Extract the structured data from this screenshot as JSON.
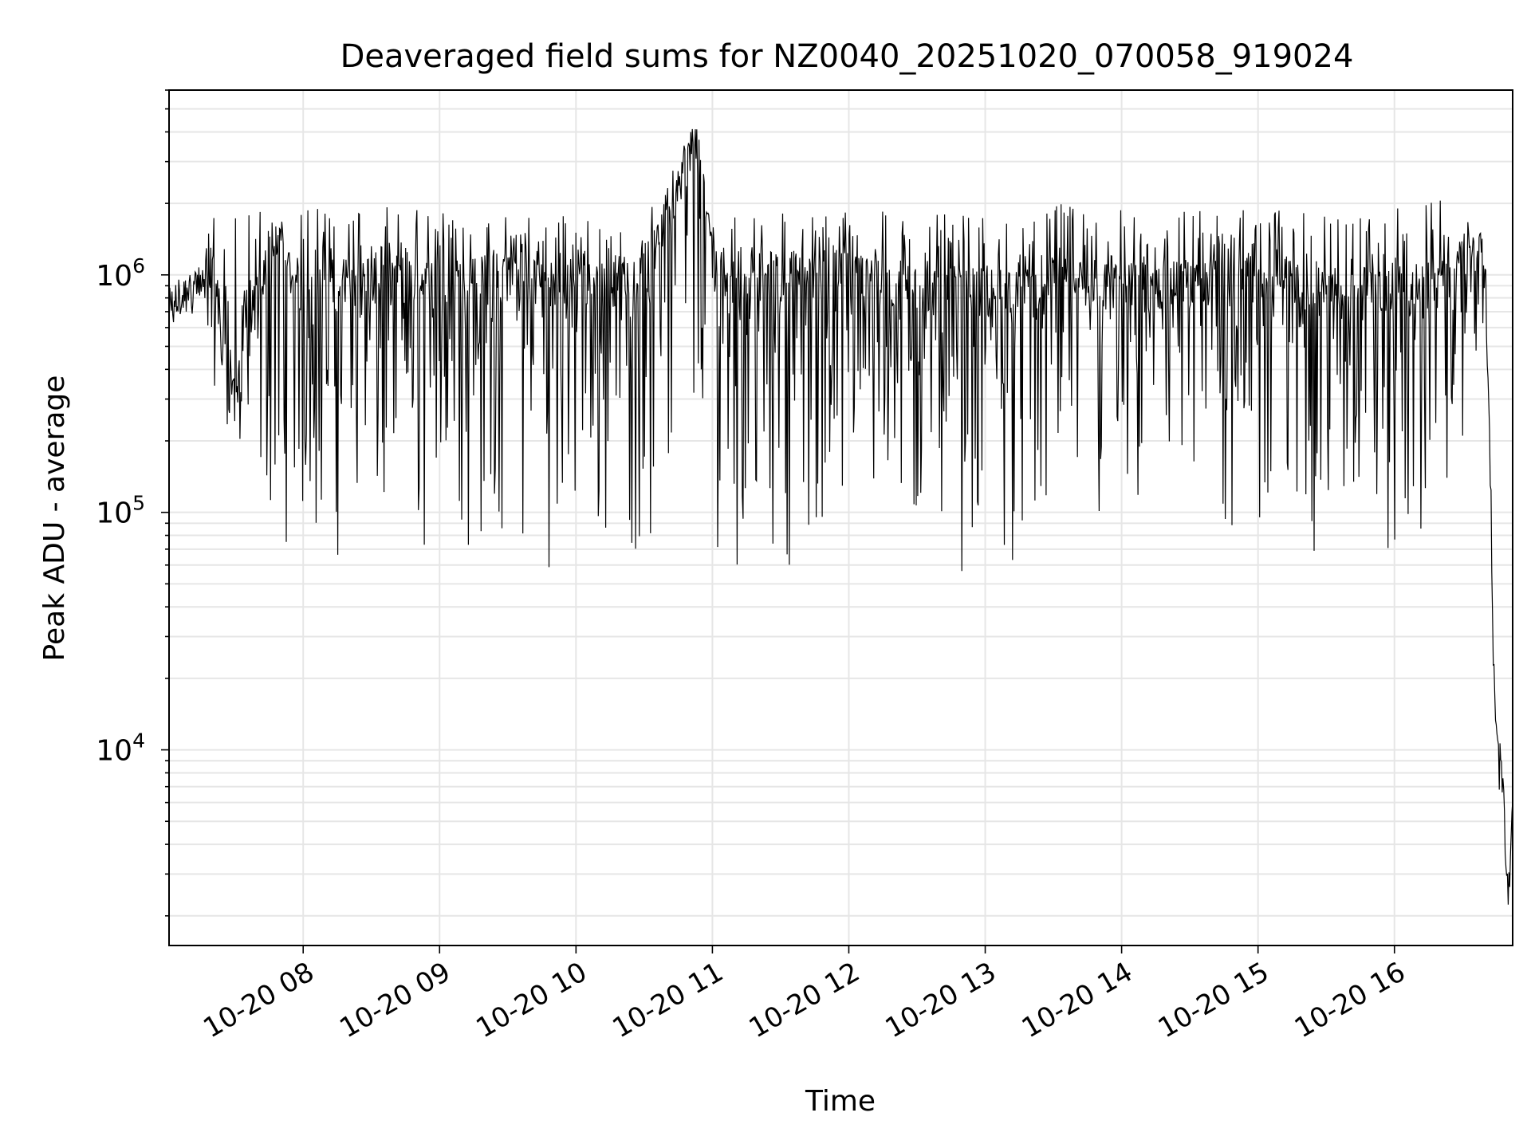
{
  "chart_data": {
    "type": "line",
    "title": "Deaveraged field sums for NZ0040_20251020_070058_919024",
    "xlabel": "Time",
    "ylabel": "Peak ADU - average",
    "y_scale": "log",
    "xlim": [
      "2025-10-20 07:01",
      "2025-10-20 16:52"
    ],
    "ylim": [
      1500,
      6000000
    ],
    "x_ticks": [
      "10-20 08",
      "10-20 09",
      "10-20 10",
      "10-20 11",
      "10-20 12",
      "10-20 13",
      "10-20 14",
      "10-20 15",
      "10-20 16"
    ],
    "y_ticks": [
      {
        "base": "10",
        "exp": "4",
        "value": 10000
      },
      {
        "base": "10",
        "exp": "5",
        "value": 100000
      },
      {
        "base": "10",
        "exp": "6",
        "value": 1000000
      }
    ],
    "grid": true,
    "line_color": "#000000",
    "grid_color": "#e6e6e6",
    "series": [
      {
        "x": [
          "2025-10-20 07:01",
          "2025-10-20 07:05",
          "2025-10-20 07:10",
          "2025-10-20 07:15",
          "2025-10-20 07:20",
          "2025-10-20 07:25",
          "2025-10-20 07:30",
          "2025-10-20 07:35",
          "2025-10-20 07:40",
          "2025-10-20 07:45",
          "2025-10-20 07:50",
          "2025-10-20 07:55",
          "2025-10-20 08:00",
          "2025-10-20 08:30",
          "2025-10-20 09:00",
          "2025-10-20 09:30",
          "2025-10-20 10:00",
          "2025-10-20 10:30",
          "2025-10-20 10:53",
          "2025-10-20 11:00",
          "2025-10-20 11:30",
          "2025-10-20 12:00",
          "2025-10-20 12:30",
          "2025-10-20 13:00",
          "2025-10-20 13:30",
          "2025-10-20 14:00",
          "2025-10-20 14:30",
          "2025-10-20 15:00",
          "2025-10-20 15:30",
          "2025-10-20 16:00",
          "2025-10-20 16:20",
          "2025-10-20 16:38",
          "2025-10-20 16:40",
          "2025-10-20 16:42",
          "2025-10-20 16:44",
          "2025-10-20 16:46",
          "2025-10-20 16:48",
          "2025-10-20 16:50",
          "2025-10-20 16:52"
        ],
        "y": [
          700000,
          800000,
          900000,
          950000,
          1000000,
          600000,
          350000,
          500000,
          900000,
          1200000,
          1300000,
          1000000,
          900000,
          1000000,
          950000,
          1000000,
          950000,
          1000000,
          4100000,
          1100000,
          1000000,
          1050000,
          900000,
          850000,
          1000000,
          900000,
          950000,
          1000000,
          900000,
          850000,
          900000,
          1400000,
          1000000,
          200000,
          17000,
          9000,
          7000,
          2200,
          6000
        ],
        "y_min": [
          500000,
          600000,
          700000,
          600000,
          350000,
          250000,
          180000,
          120000,
          90000,
          75000,
          70000,
          65000,
          60000,
          55000,
          52000,
          55000,
          55000,
          55000,
          60000,
          55000,
          55000,
          70000,
          55000,
          50000,
          55000,
          50000,
          55000,
          50000,
          55000,
          50000,
          60000,
          500000,
          400000,
          100000,
          12000,
          6000,
          4500,
          2200,
          5000
        ],
        "y_max": [
          800000,
          900000,
          1000000,
          1100000,
          2000000,
          1500000,
          1800000,
          1900000,
          2000000,
          2000000,
          1900000,
          1950000,
          2000000,
          1950000,
          1900000,
          1850000,
          1800000,
          1800000,
          4100000,
          1900000,
          1850000,
          1900000,
          1800000,
          1800000,
          2000000,
          1900000,
          1900000,
          1900000,
          1900000,
          1900000,
          2100000,
          1500000,
          1400000,
          300000,
          18000,
          10000,
          9000,
          2500,
          7000
        ]
      }
    ]
  }
}
